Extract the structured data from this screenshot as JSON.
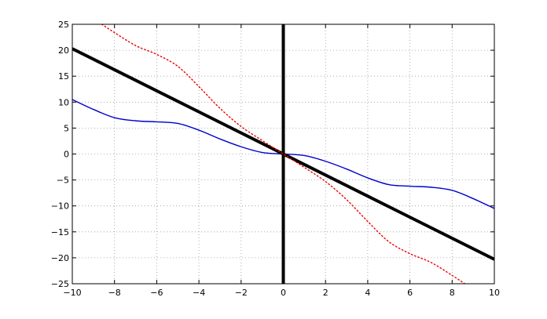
{
  "chart_data": {
    "type": "line",
    "title": "",
    "xlabel": "",
    "ylabel": "",
    "xlim": [
      -10,
      10
    ],
    "ylim": [
      -25,
      25
    ],
    "grid": true,
    "x_ticks": [
      -10,
      -8,
      -6,
      -4,
      -2,
      0,
      2,
      4,
      6,
      8,
      10
    ],
    "y_ticks": [
      -25,
      -20,
      -15,
      -10,
      -5,
      0,
      5,
      10,
      15,
      20,
      25
    ],
    "x_tick_labels": [
      "−10",
      "−8",
      "−6",
      "−4",
      "−2",
      "0",
      "2",
      "4",
      "6",
      "8",
      "10"
    ],
    "y_tick_labels": [
      "−25",
      "−20",
      "−15",
      "−10",
      "−5",
      "0",
      "5",
      "10",
      "15",
      "20",
      "25"
    ],
    "series": [
      {
        "style": "solid",
        "color": "#0000cc",
        "x": [
          -10,
          -9,
          -8,
          -7,
          -6,
          -5,
          -4,
          -3,
          -2,
          -1,
          0,
          1,
          2,
          3,
          4,
          5,
          6,
          7,
          8,
          9,
          10
        ],
        "y": [
          10.5,
          8.6,
          7.0,
          6.4,
          6.2,
          5.9,
          4.6,
          2.9,
          1.4,
          0.3,
          0.0,
          -0.3,
          -1.4,
          -2.9,
          -4.6,
          -5.9,
          -6.2,
          -6.4,
          -7.0,
          -8.6,
          -10.5
        ]
      },
      {
        "style": "thick",
        "color": "#000000",
        "x": [
          -10,
          10
        ],
        "y": [
          20.3,
          -20.3
        ]
      },
      {
        "style": "dotted",
        "color": "#ee0000",
        "x": [
          -8.6,
          -8,
          -7,
          -6,
          -5,
          -4,
          -3,
          -2,
          -1,
          0,
          1,
          2,
          3,
          4,
          5,
          6,
          7,
          8,
          8.6
        ],
        "y": [
          25.0,
          23.4,
          20.9,
          19.2,
          16.9,
          13.0,
          8.8,
          5.3,
          2.6,
          0.0,
          -2.6,
          -5.3,
          -8.8,
          -13.0,
          -16.9,
          -19.2,
          -20.9,
          -23.4,
          -25.0
        ]
      }
    ],
    "vertical_lines": [
      {
        "x": 0,
        "color": "#000000",
        "style": "thick"
      }
    ]
  }
}
